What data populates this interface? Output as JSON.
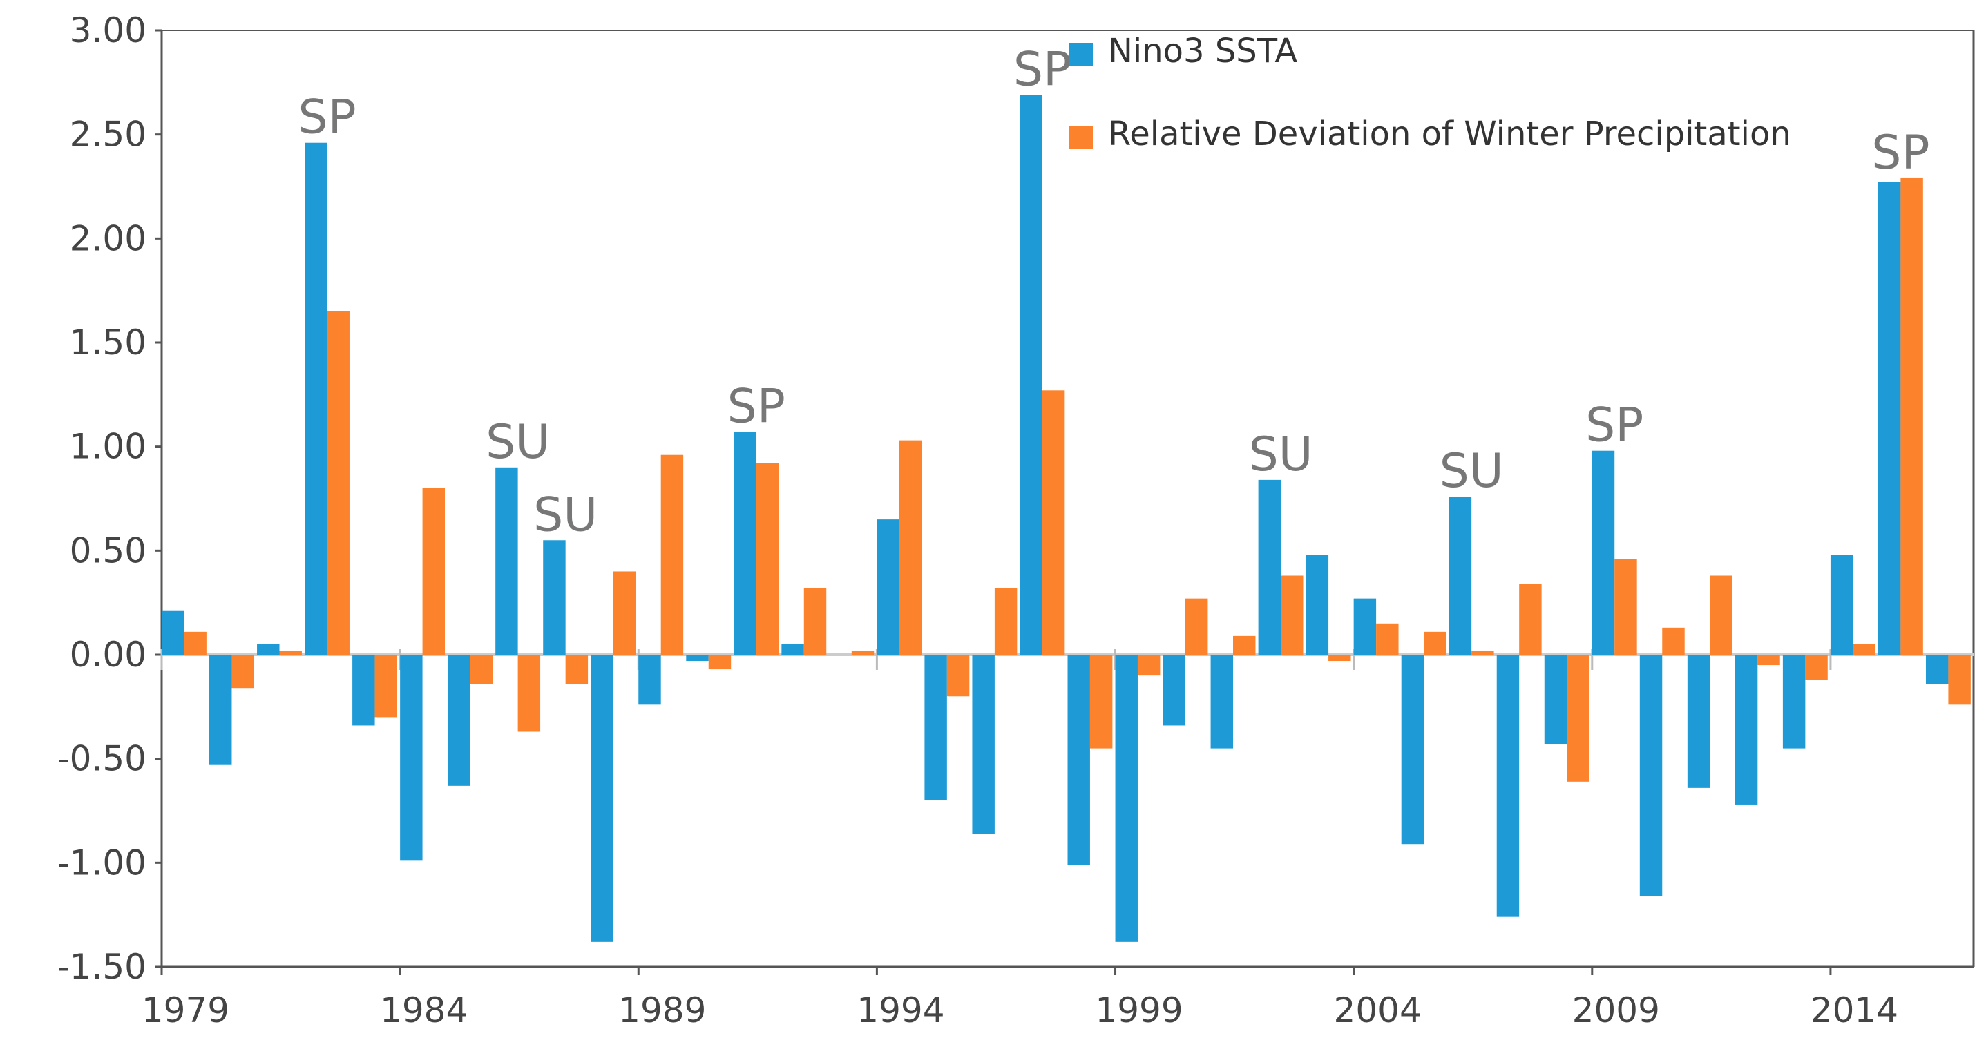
{
  "chart_data": {
    "type": "bar",
    "title": "",
    "xlabel": "",
    "ylabel": "",
    "ylim": [
      -1.5,
      3.0
    ],
    "y_ticks": [
      "3.00",
      "2.50",
      "2.00",
      "1.50",
      "1.00",
      "0.50",
      "0.00",
      "-0.50",
      "-1.00",
      "-1.50"
    ],
    "x_tick_labels": [
      "1979",
      "1984",
      "1989",
      "1994",
      "1999",
      "2004",
      "2009",
      "2014"
    ],
    "x_tick_years": [
      1979,
      1984,
      1989,
      1994,
      1999,
      2004,
      2009,
      2014
    ],
    "grid": false,
    "legend_position": "top-right",
    "categories": [
      1979,
      1980,
      1981,
      1982,
      1983,
      1984,
      1985,
      1986,
      1987,
      1988,
      1989,
      1990,
      1991,
      1992,
      1993,
      1994,
      1995,
      1996,
      1997,
      1998,
      1999,
      2000,
      2001,
      2002,
      2003,
      2004,
      2005,
      2006,
      2007,
      2008,
      2009,
      2010,
      2011,
      2012,
      2013,
      2014,
      2015,
      2016
    ],
    "series": [
      {
        "name": "Nino3 SSTA",
        "color": "#1e9ad6",
        "values": [
          0.21,
          -0.53,
          0.05,
          2.46,
          -0.34,
          -0.99,
          -0.63,
          0.9,
          0.55,
          -1.38,
          -0.24,
          -0.03,
          1.07,
          0.05,
          0.0,
          0.65,
          -0.7,
          -0.86,
          2.69,
          -1.01,
          -1.38,
          -0.34,
          -0.45,
          0.84,
          0.48,
          0.27,
          -0.91,
          0.76,
          -1.26,
          -0.43,
          0.98,
          -1.16,
          -0.64,
          -0.72,
          -0.45,
          0.48,
          2.27,
          -0.14
        ]
      },
      {
        "name": "Relative Deviation of Winter Precipitation",
        "color": "#fc822b",
        "values": [
          0.11,
          -0.16,
          0.02,
          1.65,
          -0.3,
          0.8,
          -0.14,
          -0.37,
          -0.14,
          0.4,
          0.96,
          -0.07,
          0.92,
          0.32,
          0.02,
          1.03,
          -0.2,
          0.32,
          1.27,
          -0.45,
          -0.1,
          0.27,
          0.09,
          0.38,
          -0.03,
          0.15,
          0.11,
          0.02,
          0.34,
          -0.61,
          0.46,
          0.13,
          0.38,
          -0.05,
          -0.12,
          0.05,
          2.29,
          -0.24
        ]
      }
    ],
    "annotations": [
      {
        "text": "SP",
        "year": 1982,
        "value": 2.46
      },
      {
        "text": "SU",
        "year": 1986,
        "value": 0.9
      },
      {
        "text": "SU",
        "year": 1987,
        "value": 0.55
      },
      {
        "text": "SP",
        "year": 1991,
        "value": 1.07
      },
      {
        "text": "SP",
        "year": 1997,
        "value": 2.69
      },
      {
        "text": "SU",
        "year": 2002,
        "value": 0.84
      },
      {
        "text": "SU",
        "year": 2006,
        "value": 0.76
      },
      {
        "text": "SP",
        "year": 2009,
        "value": 0.98
      },
      {
        "text": "SP",
        "year": 2015,
        "value": 2.29
      }
    ]
  }
}
